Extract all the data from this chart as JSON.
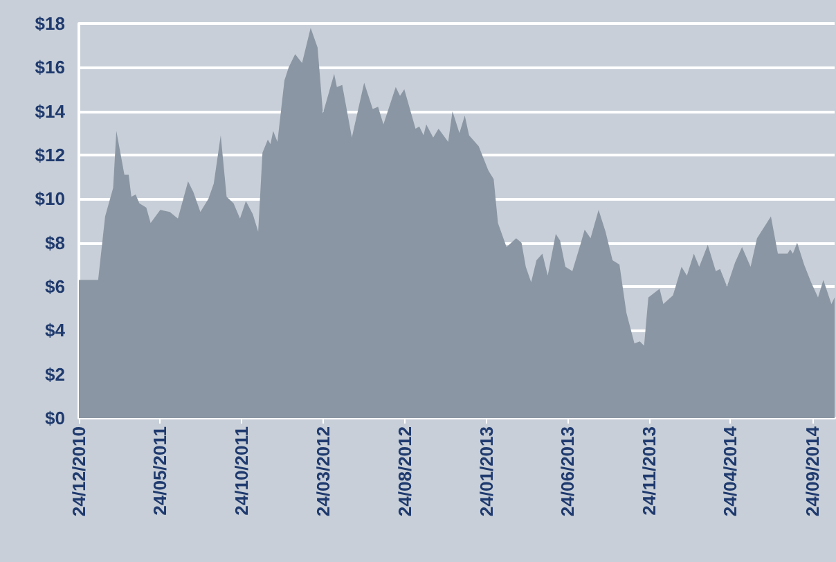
{
  "chart_data": {
    "type": "area",
    "x": [
      "2010-12-24",
      "2011-01-29",
      "2011-02-11",
      "2011-02-26",
      "2011-03-04",
      "2011-03-19",
      "2011-03-27",
      "2011-04-01",
      "2011-04-09",
      "2011-04-16",
      "2011-04-29",
      "2011-05-07",
      "2011-05-25",
      "2011-06-12",
      "2011-06-27",
      "2011-07-16",
      "2011-07-26",
      "2011-08-08",
      "2011-08-23",
      "2011-09-02",
      "2011-09-15",
      "2011-09-26",
      "2011-10-09",
      "2011-10-21",
      "2011-11-01",
      "2011-11-14",
      "2011-11-24",
      "2011-12-02",
      "2011-12-12",
      "2011-12-17",
      "2011-12-22",
      "2011-12-30",
      "2012-01-12",
      "2012-01-20",
      "2012-02-01",
      "2012-02-14",
      "2012-03-01",
      "2012-03-14",
      "2012-03-24",
      "2012-04-14",
      "2012-04-19",
      "2012-04-29",
      "2012-05-17",
      "2012-06-09",
      "2012-06-25",
      "2012-07-05",
      "2012-07-15",
      "2012-08-07",
      "2012-08-15",
      "2012-08-23",
      "2012-09-13",
      "2012-09-20",
      "2012-09-28",
      "2012-10-03",
      "2012-10-16",
      "2012-10-26",
      "2012-11-13",
      "2012-11-21",
      "2012-12-04",
      "2012-12-14",
      "2012-12-22",
      "2013-01-09",
      "2013-01-27",
      "2013-02-06",
      "2013-02-14",
      "2013-03-02",
      "2013-03-20",
      "2013-03-30",
      "2013-04-07",
      "2013-04-17",
      "2013-04-27",
      "2013-05-08",
      "2013-05-18",
      "2013-06-02",
      "2013-06-10",
      "2013-06-20",
      "2013-07-03",
      "2013-07-19",
      "2013-07-26",
      "2013-08-06",
      "2013-08-21",
      "2013-09-03",
      "2013-09-16",
      "2013-09-29",
      "2013-10-12",
      "2013-10-27",
      "2013-11-06",
      "2013-11-14",
      "2013-11-22",
      "2013-12-13",
      "2013-12-20",
      "2014-01-07",
      "2014-01-23",
      "2014-02-02",
      "2014-02-15",
      "2014-02-25",
      "2014-03-13",
      "2014-03-28",
      "2014-04-05",
      "2014-04-18",
      "2014-05-03",
      "2014-05-16",
      "2014-06-01",
      "2014-06-13",
      "2014-07-09",
      "2014-07-22",
      "2014-08-09",
      "2014-08-14",
      "2014-08-19",
      "2014-08-27",
      "2014-09-09",
      "2014-09-22",
      "2014-10-05",
      "2014-10-15",
      "2014-10-30",
      "2014-11-05"
    ],
    "values": [
      6.3,
      6.3,
      9.2,
      10.5,
      13.1,
      11.1,
      11.1,
      10.1,
      10.2,
      9.8,
      9.6,
      8.9,
      9.5,
      9.4,
      9.1,
      10.8,
      10.3,
      9.4,
      10.0,
      10.7,
      12.9,
      10.1,
      9.8,
      9.1,
      9.9,
      9.3,
      8.5,
      12.1,
      12.7,
      12.5,
      13.1,
      12.6,
      15.4,
      16.0,
      16.6,
      16.2,
      17.8,
      16.9,
      13.9,
      15.7,
      15.1,
      15.2,
      12.8,
      15.3,
      14.1,
      14.2,
      13.4,
      15.1,
      14.7,
      15.0,
      13.2,
      13.3,
      12.9,
      13.4,
      12.8,
      13.2,
      12.6,
      14.0,
      13.0,
      13.8,
      12.9,
      12.4,
      11.3,
      10.9,
      8.9,
      7.8,
      8.2,
      8.0,
      6.9,
      6.2,
      7.2,
      7.5,
      6.5,
      8.4,
      8.1,
      6.9,
      6.7,
      8.0,
      8.6,
      8.2,
      9.5,
      8.5,
      7.2,
      7.0,
      4.8,
      3.4,
      3.5,
      3.3,
      5.5,
      5.9,
      5.2,
      5.6,
      6.9,
      6.5,
      7.5,
      6.9,
      7.9,
      6.7,
      6.8,
      6.0,
      7.1,
      7.8,
      6.9,
      8.2,
      9.2,
      7.5,
      7.5,
      7.7,
      7.5,
      8.0,
      7.0,
      6.2,
      5.5,
      6.3,
      5.2,
      5.5
    ],
    "color": "#8a96a3",
    "xlim": [
      "2010-12-24",
      "2014-11-05"
    ],
    "xticks": [
      {
        "value": "2010-12-24",
        "label": "24/12/2010"
      },
      {
        "value": "2011-05-24",
        "label": "24/05/2011"
      },
      {
        "value": "2011-10-24",
        "label": "24/10/2011"
      },
      {
        "value": "2012-03-24",
        "label": "24/03/2012"
      },
      {
        "value": "2012-08-24",
        "label": "24/08/2012"
      },
      {
        "value": "2013-01-24",
        "label": "24/01/2013"
      },
      {
        "value": "2013-06-24",
        "label": "24/06/2013"
      },
      {
        "value": "2013-11-24",
        "label": "24/11/2013"
      },
      {
        "value": "2014-04-24",
        "label": "24/04/2014"
      },
      {
        "value": "2014-09-24",
        "label": "24/09/2014"
      }
    ],
    "ylim": [
      0,
      18
    ],
    "yticks": [
      {
        "value": 0,
        "label": "$0"
      },
      {
        "value": 2,
        "label": "$2"
      },
      {
        "value": 4,
        "label": "$4"
      },
      {
        "value": 6,
        "label": "$6"
      },
      {
        "value": 8,
        "label": "$8"
      },
      {
        "value": 10,
        "label": "$10"
      },
      {
        "value": 12,
        "label": "$12"
      },
      {
        "value": 14,
        "label": "$14"
      },
      {
        "value": 16,
        "label": "$16"
      },
      {
        "value": 18,
        "label": "$18"
      }
    ],
    "grid": "y"
  }
}
